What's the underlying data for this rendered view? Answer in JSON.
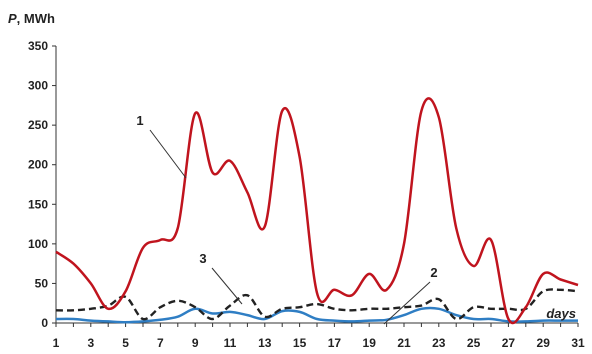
{
  "chart_data": {
    "type": "line",
    "ylabel_var": "P",
    "ylabel_unit": ", MWh",
    "xlabel": "days",
    "xlim": [
      1,
      31
    ],
    "ylim": [
      0,
      350
    ],
    "grid": false,
    "legend": "none",
    "x": [
      1,
      2,
      3,
      4,
      5,
      6,
      7,
      8,
      9,
      10,
      11,
      12,
      13,
      14,
      15,
      16,
      17,
      18,
      19,
      20,
      21,
      22,
      23,
      24,
      25,
      26,
      27,
      28,
      29,
      30,
      31
    ],
    "x_ticks": [
      "1",
      "3",
      "5",
      "7",
      "9",
      "11",
      "13",
      "15",
      "17",
      "19",
      "21",
      "23",
      "25",
      "27",
      "29",
      "31"
    ],
    "y_ticks": [
      "0",
      "50",
      "100",
      "150",
      "200",
      "250",
      "300",
      "350"
    ],
    "series": [
      {
        "name": "1",
        "color": "#c0141e",
        "style": "solid",
        "values": [
          90,
          75,
          50,
          18,
          40,
          95,
          105,
          120,
          265,
          190,
          205,
          165,
          122,
          268,
          210,
          38,
          42,
          35,
          62,
          42,
          100,
          268,
          260,
          120,
          72,
          105,
          5,
          20,
          62,
          55,
          48
        ]
      },
      {
        "name": "2",
        "color": "#2f7ec4",
        "style": "solid",
        "values": [
          5,
          5,
          3,
          2,
          1,
          2,
          4,
          8,
          18,
          12,
          14,
          10,
          5,
          15,
          14,
          5,
          3,
          2,
          3,
          4,
          10,
          18,
          18,
          10,
          5,
          5,
          2,
          2,
          3,
          3,
          3
        ]
      },
      {
        "name": "3",
        "color": "#222222",
        "style": "dashed",
        "values": [
          16,
          16,
          18,
          22,
          33,
          5,
          20,
          28,
          20,
          5,
          22,
          35,
          8,
          18,
          20,
          24,
          18,
          16,
          18,
          18,
          20,
          22,
          30,
          5,
          20,
          18,
          18,
          18,
          40,
          42,
          40
        ]
      }
    ]
  }
}
